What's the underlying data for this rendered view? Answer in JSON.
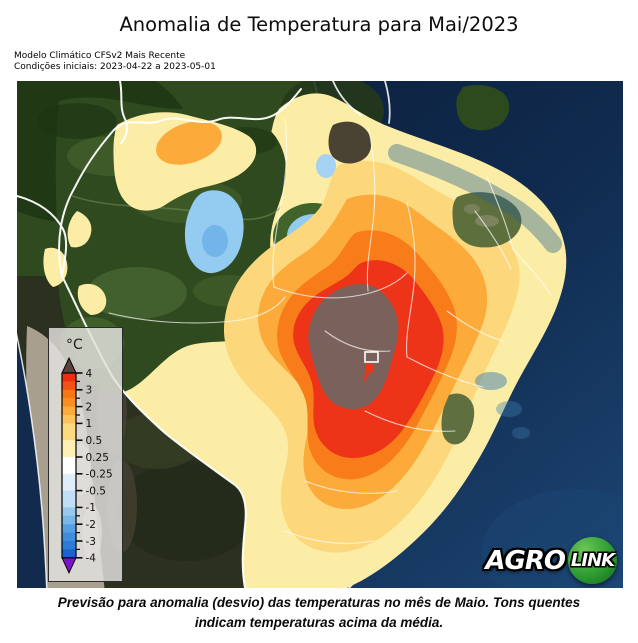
{
  "title": "Anomalia de Temperatura para Mai/2023",
  "subtitle": {
    "line1": "Modelo Climático CFSv2 Mais Recente",
    "line2": "Condições iniciais: 2023-04-22 a 2023-05-01"
  },
  "caption": {
    "line1": "Previsão para anomalia (desvio) das temperaturas no mês de Maio. Tons quentes",
    "line2": "indicam temperaturas acima da média."
  },
  "legend": {
    "unit_label": "°C",
    "ticks": [
      "4",
      "3",
      "2",
      "1",
      "0.5",
      "0.25",
      "-0.25",
      "-0.5",
      "-1",
      "-2",
      "-3",
      "-4"
    ],
    "segment_colors": [
      [
        "#ee2d10",
        "#f45117"
      ],
      [
        "#f67612",
        "#f98f24"
      ],
      [
        "#fbac3a",
        "#fcc35d"
      ],
      [
        "#fdd97f"
      ],
      [
        "#fef0b4"
      ],
      [
        "#ffffff"
      ],
      [
        "#e0eefa"
      ],
      [
        "#c0def5"
      ],
      [
        "#97c8ee",
        "#7ab7e8"
      ],
      [
        "#569fe2",
        "#3f8edd"
      ],
      [
        "#2a7cd6",
        "#1a63c9"
      ]
    ],
    "over_color": "#55453e",
    "under_color": "#7b13c9"
  },
  "logo": {
    "text_left": "AGRO",
    "text_right": "LINK",
    "circle_color": "#2e9b32"
  },
  "map": {
    "palette": {
      "ocean_deep": "#0b1d39",
      "forest": "#2e4a1e",
      "andes": "#a99f8f",
      "anom_025": "#fbeda5",
      "anom_05": "#fdd77c",
      "anom_1": "#fcab3a",
      "anom_2": "#f87d1a",
      "anom_3": "#ee3418",
      "anom_4plus": "#7a615c",
      "cool_025": "#93cbf1",
      "cool_1": "#3e8ede",
      "ring_green": "#41632c",
      "border": "#ffffff"
    }
  },
  "chart_data": {
    "type": "heatmap",
    "title": "Anomalia de Temperatura para Mai/2023",
    "unit": "°C",
    "scale_boundaries": [
      -4,
      -3,
      -2,
      -1,
      -0.5,
      -0.25,
      0.25,
      0.5,
      1,
      2,
      3,
      4
    ],
    "scale_note": "warm colors = above-average temperature anomaly over Brazil; peak anomaly > 4°C over central Brazil; small negative (blue) anomalies over central Amazon"
  }
}
